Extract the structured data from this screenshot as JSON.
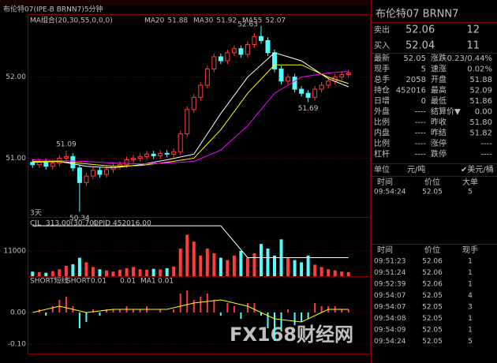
{
  "chart_data": {
    "type": "candlestick",
    "title": "布伦特07(IPE-B BRNN7)5分钟",
    "legend_title": "MA组合(20,30,55,0,0,0)",
    "period": "3天",
    "ylim": [
      50.275,
      52.765
    ],
    "yticks": [
      {
        "value": 52,
        "label": "52.00"
      },
      {
        "value": 51,
        "label": "51.00"
      }
    ],
    "grid": true,
    "up_color": "#ff3c3c",
    "down_color": "#54fcfc",
    "candles": {
      "open": [
        50.95,
        50.92,
        50.95,
        50.9,
        50.94,
        51.0,
        51.02,
        50.88,
        50.7,
        50.78,
        50.85,
        50.8,
        50.86,
        50.9,
        50.92,
        50.98,
        51.0,
        51.02,
        51.05,
        51.03,
        51.06,
        51.05,
        51.08,
        51.3,
        51.6,
        51.75,
        51.9,
        52.1,
        52.25,
        52.2,
        52.3,
        52.35,
        52.28,
        52.4,
        52.5,
        52.45,
        52.3,
        52.1,
        51.95,
        52.0,
        51.85,
        51.8,
        51.75,
        51.85,
        51.9,
        51.95,
        52.0,
        52.03
      ],
      "high": [
        50.99,
        50.99,
        50.99,
        50.98,
        51.04,
        51.09,
        51.06,
        50.92,
        50.82,
        50.89,
        50.89,
        50.9,
        50.94,
        50.96,
        51.02,
        51.04,
        51.06,
        51.09,
        51.09,
        51.1,
        51.1,
        51.12,
        51.34,
        51.64,
        51.79,
        51.94,
        52.14,
        52.29,
        52.29,
        52.34,
        52.39,
        52.39,
        52.44,
        52.54,
        52.63,
        52.49,
        52.34,
        52.14,
        52.04,
        52.04,
        51.89,
        51.84,
        51.89,
        51.94,
        51.99,
        52.04,
        52.07,
        52.09
      ],
      "low": [
        50.88,
        50.88,
        50.86,
        50.86,
        50.9,
        50.96,
        50.84,
        50.34,
        50.66,
        50.74,
        50.76,
        50.76,
        50.82,
        50.86,
        50.88,
        50.94,
        50.96,
        50.98,
        50.99,
        50.99,
        51.01,
        51.01,
        51.04,
        51.26,
        51.56,
        51.71,
        51.86,
        52.06,
        52.16,
        52.16,
        52.26,
        52.24,
        52.24,
        52.36,
        52.41,
        52.26,
        52.06,
        51.91,
        51.91,
        51.81,
        51.76,
        51.69,
        51.71,
        51.81,
        51.86,
        51.91,
        51.96,
        51.99
      ],
      "close": [
        50.92,
        50.95,
        50.9,
        50.94,
        51.0,
        51.02,
        50.88,
        50.7,
        50.78,
        50.85,
        50.8,
        50.86,
        50.9,
        50.92,
        50.98,
        51.0,
        51.02,
        51.05,
        51.03,
        51.06,
        51.05,
        51.08,
        51.3,
        51.6,
        51.75,
        51.9,
        52.1,
        52.25,
        52.2,
        52.3,
        52.35,
        52.28,
        52.4,
        52.5,
        52.45,
        52.3,
        52.1,
        51.95,
        52.0,
        51.85,
        51.8,
        51.75,
        51.85,
        51.9,
        51.95,
        52.0,
        52.03,
        52.05
      ]
    },
    "series": [
      {
        "name": "MA20",
        "latest": 51.88,
        "color": "#ffffff",
        "x": [
          0,
          4,
          8,
          12,
          16,
          20,
          24,
          28,
          32,
          36,
          40,
          44,
          47
        ],
        "values": [
          50.95,
          50.96,
          50.9,
          50.88,
          50.92,
          50.98,
          51.05,
          51.55,
          52.0,
          52.3,
          52.2,
          51.98,
          51.88
        ]
      },
      {
        "name": "MA30",
        "latest": 51.92,
        "color": "#ffff00",
        "x": [
          0,
          4,
          8,
          12,
          16,
          20,
          24,
          28,
          32,
          36,
          40,
          44,
          47
        ],
        "values": [
          50.96,
          50.96,
          50.93,
          50.9,
          50.91,
          50.95,
          51.0,
          51.35,
          51.8,
          52.15,
          52.15,
          52.0,
          51.92
        ]
      },
      {
        "name": "MA55",
        "latest": 52.07,
        "color": "#ff00ff",
        "x": [
          0,
          4,
          8,
          12,
          16,
          20,
          24,
          28,
          32,
          36,
          40,
          44,
          47
        ],
        "values": [
          50.98,
          50.97,
          50.96,
          50.94,
          50.93,
          50.94,
          50.96,
          51.1,
          51.4,
          51.8,
          52.0,
          52.05,
          52.07
        ]
      }
    ],
    "volume": {
      "label": "CJL",
      "label_value": "313.00(30:70)",
      "oi_label": "OPID",
      "oi_value": "452016.00",
      "ylim": [
        0,
        25000
      ],
      "yticks": [
        11000
      ],
      "values": [
        2000,
        1800,
        1500,
        2200,
        3000,
        4500,
        5200,
        8000,
        6000,
        4000,
        3000,
        2500,
        2000,
        2800,
        3500,
        4000,
        3000,
        2800,
        3200,
        3000,
        3500,
        4200,
        12000,
        18000,
        15000,
        9000,
        12000,
        10000,
        8000,
        7000,
        9000,
        11000,
        8000,
        10000,
        14000,
        12000,
        9000,
        16000,
        8000,
        7000,
        6000,
        9000,
        5000,
        4000,
        3000,
        2500,
        2000,
        1800
      ],
      "oi": {
        "color": "#ffffff",
        "y2lim": [
          451500,
          453100
        ],
        "x": [
          0,
          4,
          8,
          12,
          16,
          20,
          24,
          28,
          32,
          36,
          40,
          44,
          47
        ],
        "values": [
          452900,
          452900,
          452900,
          452900,
          452900,
          452900,
          452900,
          452900,
          452016,
          452016,
          452016,
          452016,
          452016
        ]
      }
    },
    "short": {
      "label": "SHORT短线",
      "name": "SHORT",
      "value": "0.01",
      "value2": "0.01",
      "ma_name": "MA1",
      "ma_value": "0.01",
      "ylim": [
        -0.13,
        0.11
      ],
      "yticks": [
        {
          "value": 0,
          "label": "0.00"
        },
        {
          "value": -0.1,
          "label": "-0.10"
        }
      ],
      "values": [
        0,
        0.01,
        -0.01,
        0.02,
        0.04,
        0.05,
        0.02,
        -0.05,
        -0.03,
        0.01,
        -0.01,
        0.01,
        0.01,
        0.01,
        0.02,
        0.01,
        0.01,
        0.02,
        0,
        0.01,
        0,
        0.01,
        0.06,
        0.07,
        0.04,
        0.05,
        0.06,
        0.04,
        -0.01,
        0.03,
        0.02,
        -0.02,
        0.03,
        0.03,
        -0.01,
        -0.05,
        -0.09,
        -0.06,
        0.01,
        -0.04,
        -0.03,
        -0.02,
        0.03,
        0.02,
        0.02,
        0.02,
        0.01,
        0.01
      ],
      "ma": {
        "color": "#ffff00",
        "x": [
          0,
          4,
          8,
          12,
          16,
          20,
          24,
          28,
          32,
          36,
          40,
          44,
          47
        ],
        "values": [
          0,
          0.02,
          0,
          0.01,
          0.01,
          0.01,
          0.03,
          0.04,
          0.02,
          -0.02,
          -0.03,
          0.01,
          0.01
        ]
      }
    }
  },
  "quote": {
    "title": "布伦特07  BRNN7",
    "sell": [
      "卖出",
      "52.06",
      "12"
    ],
    "buy": [
      "买入",
      "52.04",
      "11"
    ],
    "rows": [
      [
        "最新",
        "52.05",
        "涨跌",
        "0.23/0.44%"
      ],
      [
        "现手",
        "5",
        "速涨",
        "0.02%"
      ],
      [
        "总手",
        "2058",
        "开盘",
        "51.88"
      ],
      [
        "持仓",
        "452016",
        "最高",
        "52.09"
      ],
      [
        "日增",
        "0",
        "最低",
        "51.86"
      ],
      [
        "外盘",
        "----",
        "结算价▼",
        "0.00"
      ],
      [
        "比例",
        "----",
        "昨收",
        "51.80"
      ],
      [
        "内盘",
        "----",
        "昨结",
        "51.82"
      ],
      [
        "比例",
        "----",
        "涨停",
        "----"
      ],
      [
        "杠杆",
        "----",
        "跌停",
        "----"
      ]
    ],
    "unit": [
      "单位",
      "元/吨",
      "✔美元/桶"
    ],
    "big_header": [
      "时间",
      "价位",
      "大单"
    ],
    "big_rows": [
      [
        "09:54:24",
        "52.05",
        "5"
      ]
    ],
    "tick_header": [
      "时间",
      "价位",
      "现手"
    ],
    "tick_rows": [
      [
        "09:51:23",
        "52.06",
        "1"
      ],
      [
        "09:51:24",
        "52.06",
        "1"
      ],
      [
        "09:52:39",
        "52.06",
        "1"
      ],
      [
        "09:54:07",
        "52.05",
        "4"
      ],
      [
        "09:54:07",
        "52.05",
        "3"
      ],
      [
        "09:54:08",
        "52.05",
        "1"
      ],
      [
        "09:54:09",
        "52.05",
        "1"
      ],
      [
        "09:54:24",
        "52.05",
        "5"
      ]
    ],
    "watermark": "FX168财经网"
  }
}
